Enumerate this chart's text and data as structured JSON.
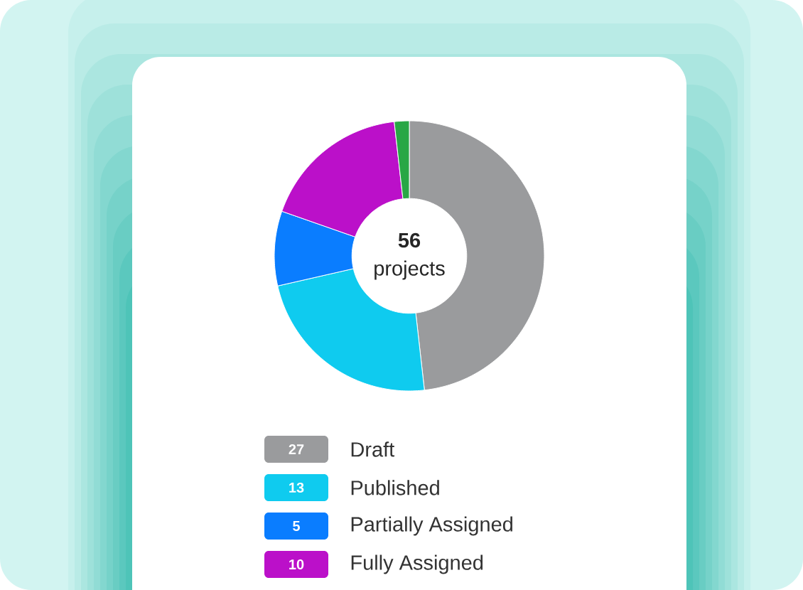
{
  "chart_data": {
    "type": "donut",
    "categories": [
      "Draft",
      "Published",
      "Partially Assigned",
      "Fully Assigned",
      null
    ],
    "values": [
      27,
      13,
      5,
      10,
      1
    ],
    "colors": [
      "#9a9b9d",
      "#0fcbef",
      "#0a7dff",
      "#bb10c9",
      "#28a745"
    ],
    "value_labels": [
      "27",
      "13",
      "5",
      "10",
      null
    ],
    "legend": "bottom",
    "annotations": [
      "56",
      "projects"
    ]
  }
}
